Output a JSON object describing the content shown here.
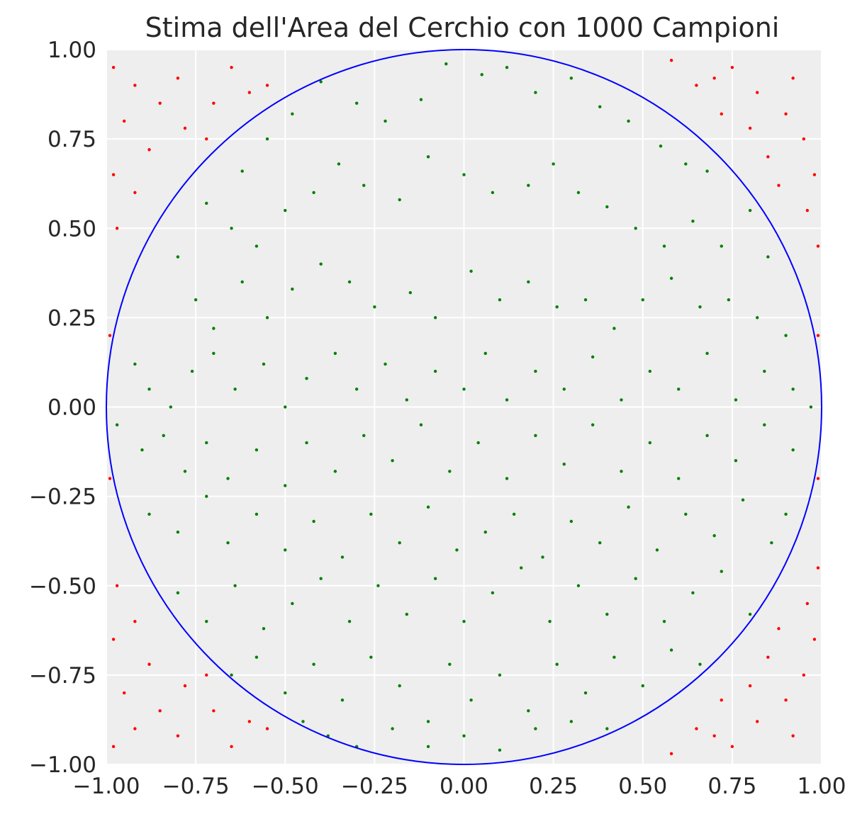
{
  "chart_data": {
    "type": "scatter",
    "title": "Stima dell'Area del Cerchio con 1000 Campioni",
    "xlabel": "",
    "ylabel": "",
    "xlim": [
      -1.0,
      1.0
    ],
    "ylim": [
      -1.0,
      1.0
    ],
    "grid": true,
    "x_ticks": [
      -1.0,
      -0.75,
      -0.5,
      -0.25,
      0.0,
      0.25,
      0.5,
      0.75,
      1.0
    ],
    "y_ticks": [
      -1.0,
      -0.75,
      -0.5,
      -0.25,
      0.0,
      0.25,
      0.5,
      0.75,
      1.0
    ],
    "x_tick_labels": [
      "−1.00",
      "−0.75",
      "−0.50",
      "−0.25",
      "0.00",
      "0.25",
      "0.50",
      "0.75",
      "1.00"
    ],
    "y_tick_labels": [
      "−1.00",
      "−0.75",
      "−0.50",
      "−0.25",
      "0.00",
      "0.25",
      "0.50",
      "0.75",
      "1.00"
    ],
    "circle": {
      "cx": 0.0,
      "cy": 0.0,
      "r": 1.0,
      "color": "#0000ff"
    },
    "colors": {
      "inside": "#008000",
      "outside": "#ff0000",
      "plot_background": "#eeeeee",
      "grid": "#ffffff",
      "text": "#262626"
    },
    "series": [
      {
        "color": "#008000",
        "points": [
          [
            -0.62,
            0.66
          ],
          [
            -0.55,
            0.75
          ],
          [
            -0.48,
            0.82
          ],
          [
            -0.4,
            0.91
          ],
          [
            -0.3,
            0.85
          ],
          [
            -0.22,
            0.8
          ],
          [
            -0.12,
            0.86
          ],
          [
            -0.05,
            0.96
          ],
          [
            0.05,
            0.93
          ],
          [
            0.12,
            0.95
          ],
          [
            0.2,
            0.88
          ],
          [
            0.3,
            0.92
          ],
          [
            0.38,
            0.84
          ],
          [
            0.46,
            0.8
          ],
          [
            0.55,
            0.73
          ],
          [
            0.62,
            0.68
          ],
          [
            0.68,
            0.66
          ],
          [
            -0.72,
            0.57
          ],
          [
            -0.65,
            0.5
          ],
          [
            -0.58,
            0.45
          ],
          [
            -0.5,
            0.55
          ],
          [
            -0.42,
            0.6
          ],
          [
            -0.35,
            0.68
          ],
          [
            -0.28,
            0.62
          ],
          [
            -0.18,
            0.58
          ],
          [
            -0.1,
            0.7
          ],
          [
            0.0,
            0.65
          ],
          [
            0.08,
            0.6
          ],
          [
            0.18,
            0.62
          ],
          [
            0.25,
            0.68
          ],
          [
            0.32,
            0.6
          ],
          [
            0.4,
            0.56
          ],
          [
            0.48,
            0.5
          ],
          [
            0.56,
            0.45
          ],
          [
            0.64,
            0.52
          ],
          [
            0.72,
            0.45
          ],
          [
            0.8,
            0.55
          ],
          [
            0.85,
            0.42
          ],
          [
            -0.8,
            0.42
          ],
          [
            -0.75,
            0.3
          ],
          [
            -0.7,
            0.22
          ],
          [
            -0.62,
            0.35
          ],
          [
            -0.55,
            0.25
          ],
          [
            -0.48,
            0.33
          ],
          [
            -0.4,
            0.4
          ],
          [
            -0.32,
            0.35
          ],
          [
            -0.25,
            0.28
          ],
          [
            -0.15,
            0.32
          ],
          [
            -0.08,
            0.25
          ],
          [
            0.02,
            0.38
          ],
          [
            0.1,
            0.3
          ],
          [
            0.18,
            0.35
          ],
          [
            0.26,
            0.28
          ],
          [
            0.34,
            0.3
          ],
          [
            0.42,
            0.22
          ],
          [
            0.5,
            0.3
          ],
          [
            0.58,
            0.36
          ],
          [
            0.66,
            0.28
          ],
          [
            0.74,
            0.3
          ],
          [
            0.82,
            0.25
          ],
          [
            0.9,
            0.2
          ],
          [
            -0.92,
            0.12
          ],
          [
            -0.88,
            0.05
          ],
          [
            -0.82,
            0.0
          ],
          [
            -0.76,
            0.1
          ],
          [
            -0.7,
            0.15
          ],
          [
            -0.64,
            0.05
          ],
          [
            -0.56,
            0.12
          ],
          [
            -0.5,
            0.0
          ],
          [
            -0.44,
            0.08
          ],
          [
            -0.36,
            0.15
          ],
          [
            -0.3,
            0.05
          ],
          [
            -0.22,
            0.12
          ],
          [
            -0.16,
            0.02
          ],
          [
            -0.08,
            0.1
          ],
          [
            0.0,
            0.05
          ],
          [
            0.06,
            0.15
          ],
          [
            0.12,
            0.02
          ],
          [
            0.2,
            0.1
          ],
          [
            0.28,
            0.05
          ],
          [
            0.36,
            0.14
          ],
          [
            0.44,
            0.02
          ],
          [
            0.52,
            0.1
          ],
          [
            0.6,
            0.05
          ],
          [
            0.68,
            0.15
          ],
          [
            0.76,
            0.02
          ],
          [
            0.84,
            0.1
          ],
          [
            0.92,
            0.05
          ],
          [
            0.97,
            0.0
          ],
          [
            -0.97,
            -0.05
          ],
          [
            -0.9,
            -0.12
          ],
          [
            -0.84,
            -0.08
          ],
          [
            -0.78,
            -0.18
          ],
          [
            -0.72,
            -0.1
          ],
          [
            -0.66,
            -0.2
          ],
          [
            -0.58,
            -0.12
          ],
          [
            -0.5,
            -0.22
          ],
          [
            -0.44,
            -0.1
          ],
          [
            -0.36,
            -0.18
          ],
          [
            -0.28,
            -0.08
          ],
          [
            -0.2,
            -0.15
          ],
          [
            -0.12,
            -0.05
          ],
          [
            -0.04,
            -0.18
          ],
          [
            0.04,
            -0.1
          ],
          [
            0.12,
            -0.2
          ],
          [
            0.2,
            -0.08
          ],
          [
            0.28,
            -0.16
          ],
          [
            0.36,
            -0.05
          ],
          [
            0.44,
            -0.18
          ],
          [
            0.52,
            -0.1
          ],
          [
            0.6,
            -0.2
          ],
          [
            0.68,
            -0.08
          ],
          [
            0.76,
            -0.15
          ],
          [
            0.84,
            -0.05
          ],
          [
            0.92,
            -0.12
          ],
          [
            -0.88,
            -0.3
          ],
          [
            -0.8,
            -0.35
          ],
          [
            -0.72,
            -0.25
          ],
          [
            -0.66,
            -0.38
          ],
          [
            -0.58,
            -0.3
          ],
          [
            -0.5,
            -0.4
          ],
          [
            -0.42,
            -0.32
          ],
          [
            -0.34,
            -0.42
          ],
          [
            -0.26,
            -0.3
          ],
          [
            -0.18,
            -0.38
          ],
          [
            -0.1,
            -0.28
          ],
          [
            -0.02,
            -0.4
          ],
          [
            0.06,
            -0.35
          ],
          [
            0.14,
            -0.3
          ],
          [
            0.22,
            -0.42
          ],
          [
            0.3,
            -0.32
          ],
          [
            0.38,
            -0.38
          ],
          [
            0.46,
            -0.28
          ],
          [
            0.54,
            -0.4
          ],
          [
            0.62,
            -0.3
          ],
          [
            0.7,
            -0.36
          ],
          [
            0.78,
            -0.26
          ],
          [
            0.86,
            -0.38
          ],
          [
            0.9,
            -0.3
          ],
          [
            -0.8,
            -0.52
          ],
          [
            -0.72,
            -0.6
          ],
          [
            -0.64,
            -0.5
          ],
          [
            -0.56,
            -0.62
          ],
          [
            -0.48,
            -0.55
          ],
          [
            -0.4,
            -0.48
          ],
          [
            -0.32,
            -0.6
          ],
          [
            -0.24,
            -0.5
          ],
          [
            -0.16,
            -0.58
          ],
          [
            -0.08,
            -0.48
          ],
          [
            0.0,
            -0.6
          ],
          [
            0.08,
            -0.52
          ],
          [
            0.16,
            -0.45
          ],
          [
            0.24,
            -0.6
          ],
          [
            0.32,
            -0.5
          ],
          [
            0.4,
            -0.58
          ],
          [
            0.48,
            -0.48
          ],
          [
            0.56,
            -0.6
          ],
          [
            0.64,
            -0.52
          ],
          [
            0.72,
            -0.46
          ],
          [
            0.8,
            -0.58
          ],
          [
            -0.65,
            -0.75
          ],
          [
            -0.58,
            -0.7
          ],
          [
            -0.5,
            -0.8
          ],
          [
            -0.42,
            -0.72
          ],
          [
            -0.34,
            -0.82
          ],
          [
            -0.26,
            -0.7
          ],
          [
            -0.18,
            -0.78
          ],
          [
            -0.1,
            -0.88
          ],
          [
            -0.04,
            -0.72
          ],
          [
            0.02,
            -0.82
          ],
          [
            0.1,
            -0.75
          ],
          [
            0.18,
            -0.85
          ],
          [
            0.26,
            -0.72
          ],
          [
            0.34,
            -0.8
          ],
          [
            0.42,
            -0.7
          ],
          [
            0.5,
            -0.78
          ],
          [
            0.58,
            -0.68
          ],
          [
            0.66,
            -0.72
          ],
          [
            -0.45,
            -0.88
          ],
          [
            -0.38,
            -0.92
          ],
          [
            -0.3,
            -0.95
          ],
          [
            -0.2,
            -0.9
          ],
          [
            -0.1,
            -0.95
          ],
          [
            0.0,
            -0.92
          ],
          [
            0.1,
            -0.96
          ],
          [
            0.2,
            -0.9
          ],
          [
            0.3,
            -0.88
          ],
          [
            0.4,
            -0.9
          ]
        ]
      },
      {
        "color": "#ff0000",
        "points": [
          [
            -0.98,
            0.95
          ],
          [
            -0.92,
            0.9
          ],
          [
            -0.85,
            0.85
          ],
          [
            -0.78,
            0.78
          ],
          [
            -0.95,
            0.8
          ],
          [
            -0.88,
            0.72
          ],
          [
            -0.7,
            0.85
          ],
          [
            -0.65,
            0.95
          ],
          [
            -0.55,
            0.9
          ],
          [
            -0.98,
            0.65
          ],
          [
            -0.92,
            0.6
          ],
          [
            -0.97,
            0.5
          ],
          [
            -0.8,
            0.92
          ],
          [
            -0.72,
            0.75
          ],
          [
            -0.6,
            0.88
          ],
          [
            0.75,
            0.95
          ],
          [
            0.82,
            0.88
          ],
          [
            0.9,
            0.82
          ],
          [
            0.95,
            0.75
          ],
          [
            0.98,
            0.65
          ],
          [
            0.85,
            0.7
          ],
          [
            0.72,
            0.82
          ],
          [
            0.65,
            0.9
          ],
          [
            0.58,
            0.97
          ],
          [
            0.92,
            0.92
          ],
          [
            0.96,
            0.55
          ],
          [
            0.99,
            0.45
          ],
          [
            0.88,
            0.62
          ],
          [
            0.8,
            0.78
          ],
          [
            0.7,
            0.92
          ],
          [
            -0.98,
            -0.95
          ],
          [
            -0.92,
            -0.9
          ],
          [
            -0.85,
            -0.85
          ],
          [
            -0.78,
            -0.78
          ],
          [
            -0.95,
            -0.8
          ],
          [
            -0.88,
            -0.72
          ],
          [
            -0.7,
            -0.85
          ],
          [
            -0.65,
            -0.95
          ],
          [
            -0.55,
            -0.9
          ],
          [
            -0.98,
            -0.65
          ],
          [
            -0.92,
            -0.6
          ],
          [
            -0.97,
            -0.5
          ],
          [
            -0.8,
            -0.92
          ],
          [
            -0.72,
            -0.75
          ],
          [
            -0.6,
            -0.88
          ],
          [
            0.75,
            -0.95
          ],
          [
            0.82,
            -0.88
          ],
          [
            0.9,
            -0.82
          ],
          [
            0.95,
            -0.75
          ],
          [
            0.98,
            -0.65
          ],
          [
            0.85,
            -0.7
          ],
          [
            0.72,
            -0.82
          ],
          [
            0.65,
            -0.9
          ],
          [
            0.58,
            -0.97
          ],
          [
            0.92,
            -0.92
          ],
          [
            0.96,
            -0.55
          ],
          [
            0.99,
            -0.45
          ],
          [
            0.88,
            -0.62
          ],
          [
            0.8,
            -0.78
          ],
          [
            0.7,
            -0.92
          ],
          [
            -0.99,
            0.2
          ],
          [
            -0.99,
            -0.2
          ],
          [
            0.99,
            0.2
          ],
          [
            0.99,
            -0.2
          ]
        ]
      }
    ]
  }
}
